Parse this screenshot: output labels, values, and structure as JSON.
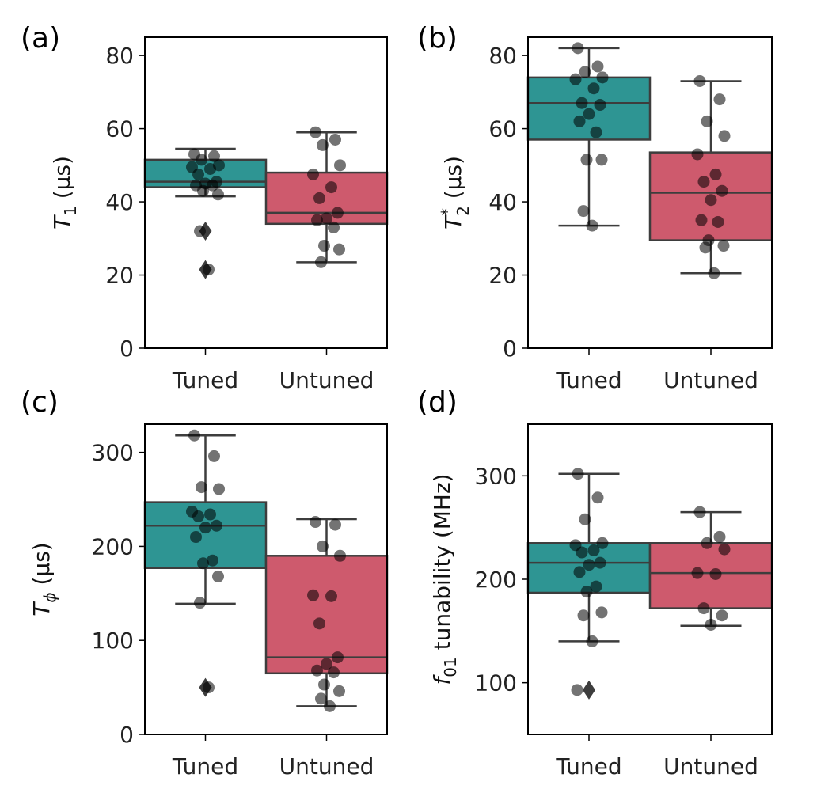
{
  "colors": {
    "tuned": "#2e9593",
    "untuned": "#ce5a6d",
    "edge": "#3d3d3d",
    "point": "#000000"
  },
  "chart_data": [
    {
      "panel_label": "(a)",
      "type": "box",
      "ylabel": {
        "main": "T",
        "sub": "1",
        "sup": "",
        "unit": " (μs)"
      },
      "ylim": [
        0,
        85
      ],
      "yticks": [
        0,
        20,
        40,
        60,
        80
      ],
      "categories": [
        "Tuned",
        "Untuned"
      ],
      "boxes": [
        {
          "name": "Tuned",
          "whisker_low": 41.5,
          "q1": 44,
          "median": 45.5,
          "q3": 51.5,
          "whisker_high": 54.5,
          "outliers": [
            32,
            21.5
          ],
          "points": [
            53,
            52.5,
            51.5,
            50,
            49.5,
            49,
            47.5,
            45.5,
            45,
            44.5,
            44.5,
            43,
            42,
            32,
            21.5
          ]
        },
        {
          "name": "Untuned",
          "whisker_low": 23.5,
          "q1": 34,
          "median": 37,
          "q3": 48,
          "whisker_high": 59,
          "outliers": [],
          "points": [
            59,
            57,
            55.5,
            50,
            47.5,
            44,
            41,
            37,
            35.5,
            35,
            33,
            28,
            27,
            23.5
          ]
        }
      ]
    },
    {
      "panel_label": "(b)",
      "type": "box",
      "ylabel": {
        "main": "T",
        "sub": "2",
        "sup": "*",
        "unit": " (μs)"
      },
      "ylim": [
        0,
        85
      ],
      "yticks": [
        0,
        20,
        40,
        60,
        80
      ],
      "categories": [
        "Tuned",
        "Untuned"
      ],
      "boxes": [
        {
          "name": "Tuned",
          "whisker_low": 33.5,
          "q1": 57,
          "median": 67,
          "q3": 74,
          "whisker_high": 82,
          "outliers": [],
          "points": [
            82,
            77,
            75.5,
            74,
            73.5,
            71,
            67,
            66.5,
            64,
            62,
            59,
            51.5,
            51.5,
            37.5,
            33.5
          ]
        },
        {
          "name": "Untuned",
          "whisker_low": 20.5,
          "q1": 29.5,
          "median": 42.5,
          "q3": 53.5,
          "whisker_high": 73,
          "outliers": [],
          "points": [
            73,
            68,
            62,
            58,
            53,
            47.5,
            45.5,
            43,
            40.5,
            35,
            34.5,
            29.5,
            28,
            27.5,
            20.5
          ]
        }
      ]
    },
    {
      "panel_label": "(c)",
      "type": "box",
      "ylabel": {
        "main": "T",
        "sub": "ϕ",
        "sup": "",
        "unit": " (μs)"
      },
      "ylim": [
        0,
        330
      ],
      "yticks": [
        0,
        100,
        200,
        300
      ],
      "categories": [
        "Tuned",
        "Untuned"
      ],
      "boxes": [
        {
          "name": "Tuned",
          "whisker_low": 139,
          "q1": 177,
          "median": 222,
          "q3": 247,
          "whisker_high": 318,
          "outliers": [
            50
          ],
          "points": [
            318,
            296,
            263,
            261,
            237,
            234,
            232,
            222,
            220,
            210,
            185,
            182,
            168,
            140,
            50
          ]
        },
        {
          "name": "Untuned",
          "whisker_low": 30,
          "q1": 65,
          "median": 82,
          "q3": 190,
          "whisker_high": 229,
          "outliers": [],
          "points": [
            226,
            223,
            200,
            190,
            148,
            147,
            118,
            82,
            75,
            68,
            66,
            53,
            46,
            38,
            30
          ]
        }
      ]
    },
    {
      "panel_label": "(d)",
      "type": "box",
      "ylabel": {
        "main": "f",
        "sub": "01",
        "sup": "",
        "unit": " tunability (MHz)"
      },
      "ylim": [
        50,
        350
      ],
      "yticks": [
        100,
        200,
        300
      ],
      "categories": [
        "Tuned",
        "Untuned"
      ],
      "boxes": [
        {
          "name": "Tuned",
          "whisker_low": 140,
          "q1": 187,
          "median": 216,
          "q3": 235,
          "whisker_high": 302,
          "outliers": [
            93
          ],
          "points": [
            302,
            279,
            258,
            235,
            233,
            228,
            226,
            216,
            214,
            207,
            193,
            188,
            168,
            165,
            140,
            93
          ]
        },
        {
          "name": "Untuned",
          "whisker_low": 155,
          "q1": 172,
          "median": 206,
          "q3": 235,
          "whisker_high": 265,
          "outliers": [],
          "points": [
            265,
            241,
            235,
            229,
            206,
            205,
            172,
            165,
            156
          ]
        }
      ]
    }
  ]
}
